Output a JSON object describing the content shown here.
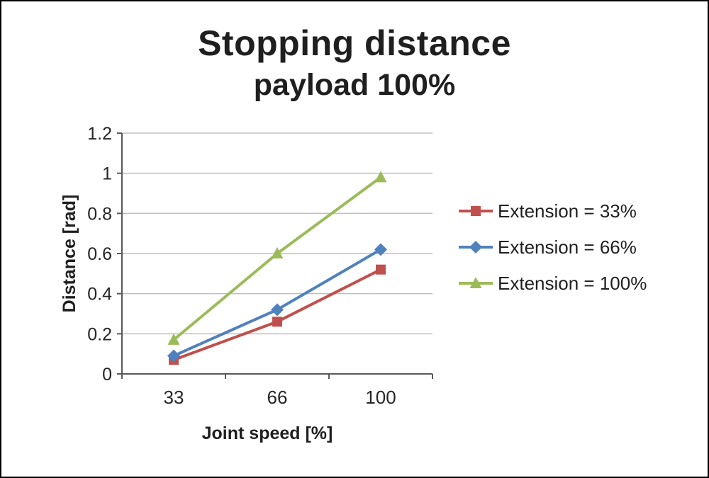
{
  "title": "Stopping distance",
  "subtitle": "payload 100%",
  "chart_data": {
    "type": "line",
    "categories": [
      "33",
      "66",
      "100"
    ],
    "series": [
      {
        "name": "Extension = 33%",
        "marker": "square",
        "color": "#C0504D",
        "values": [
          0.07,
          0.26,
          0.52
        ]
      },
      {
        "name": "Extension = 66%",
        "marker": "diamond",
        "color": "#4F81BD",
        "values": [
          0.09,
          0.32,
          0.62
        ]
      },
      {
        "name": "Extension = 100%",
        "marker": "triangle",
        "color": "#9BBB59",
        "values": [
          0.17,
          0.6,
          0.98
        ]
      }
    ],
    "xlabel": "Joint speed [%]",
    "ylabel": "Distance [rad]",
    "ylim": [
      0,
      1.2
    ],
    "ytick_step": 0.2,
    "ytick_labels": [
      "0",
      "0.2",
      "0.4",
      "0.6",
      "0.8",
      "1",
      "1.2"
    ],
    "grid": true,
    "legend_position": "right"
  },
  "colors": {
    "grid": "#BFBFBF",
    "axis": "#595959",
    "tick_text": "#262626",
    "title_text": "#1f1f1f",
    "border": "#000000"
  }
}
